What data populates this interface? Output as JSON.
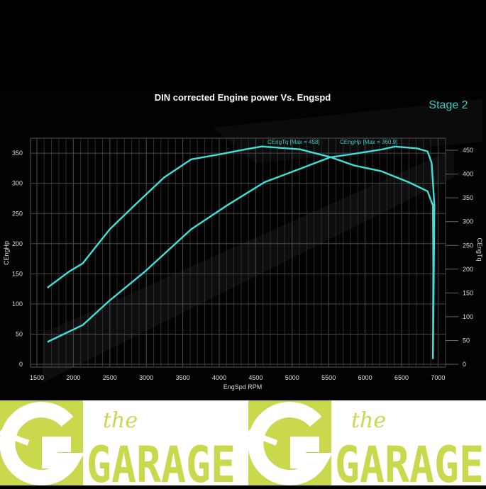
{
  "chart_data": {
    "type": "line",
    "title": "DIN corrected Engine power Vs. Engspd",
    "annotation": "Stage 2",
    "xlabel": "EngSpd RPM",
    "ylabel_left": "CEngHp",
    "ylabel_right": "CEngTq",
    "xlim": [
      1500,
      7000
    ],
    "ylim_left": [
      0,
      350
    ],
    "ylim_right": [
      0,
      450
    ],
    "x_ticks": [
      "1500",
      "2000",
      "2500",
      "3000",
      "3500",
      "4000",
      "4500",
      "5000",
      "5500",
      "6000",
      "6500",
      "7000"
    ],
    "y_left_ticks": [
      "0",
      "50",
      "100",
      "150",
      "200",
      "250",
      "300",
      "350"
    ],
    "y_right_ticks": [
      "0",
      "50",
      "100",
      "150",
      "200",
      "250",
      "300",
      "350",
      "400",
      "450"
    ],
    "grid": true,
    "legend_placement": "top",
    "series": [
      {
        "name": "CEngTq [Max = 458]",
        "axis": "right",
        "color": "#3fe0d8",
        "points": [
          [
            1644,
            161
          ],
          [
            1942,
            195
          ],
          [
            2127,
            212
          ],
          [
            2500,
            284
          ],
          [
            2872,
            339
          ],
          [
            3245,
            393
          ],
          [
            3617,
            431
          ],
          [
            3990,
            441
          ],
          [
            4360,
            452
          ],
          [
            4585,
            458
          ],
          [
            5106,
            452
          ],
          [
            5516,
            436
          ],
          [
            5850,
            418
          ],
          [
            6223,
            406
          ],
          [
            6595,
            383
          ],
          [
            6856,
            364
          ],
          [
            6930,
            334
          ],
          [
            6935,
            200
          ],
          [
            6930,
            11
          ]
        ]
      },
      {
        "name": "CEngHp [Max = 360.9]",
        "axis": "left",
        "color": "#3fe0d8",
        "points": [
          [
            1644,
            37
          ],
          [
            2127,
            65
          ],
          [
            2500,
            106
          ],
          [
            2984,
            154
          ],
          [
            3617,
            224
          ],
          [
            4101,
            263
          ],
          [
            4623,
            302
          ],
          [
            5106,
            324
          ],
          [
            5516,
            343
          ],
          [
            5850,
            349
          ],
          [
            6223,
            356
          ],
          [
            6409,
            361
          ],
          [
            6707,
            358
          ],
          [
            6856,
            353
          ],
          [
            6912,
            334
          ],
          [
            6950,
            263
          ],
          [
            6940,
            120
          ],
          [
            6930,
            9
          ]
        ]
      }
    ]
  },
  "banner": {
    "logo_text_small": "the",
    "logo_text_large": "GARAGE",
    "color": "#c9d84c"
  }
}
